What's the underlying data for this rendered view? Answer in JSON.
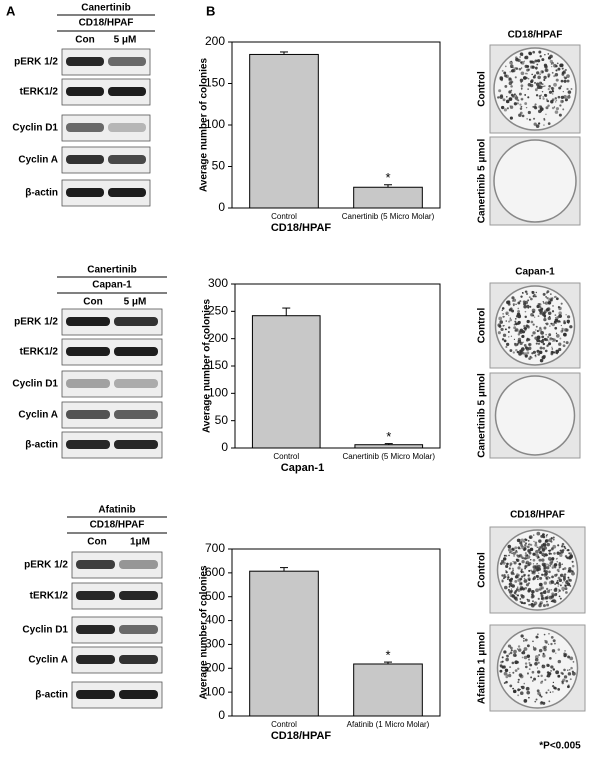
{
  "panel_labels": [
    "A",
    "B"
  ],
  "blots": [
    {
      "drug": "Canertinib",
      "cell_line": "CD18/HPAF",
      "lanes": [
        "Con",
        "5 μM"
      ],
      "rows": [
        "pERK 1/2",
        "tERK1/2",
        "Cyclin D1",
        "Cyclin A",
        "β-actin"
      ]
    },
    {
      "drug": "Canertinib",
      "cell_line": "Capan-1",
      "lanes": [
        "Con",
        "5 μM"
      ],
      "rows": [
        "pERK 1/2",
        "tERK1/2",
        "Cyclin D1",
        "Cyclin A",
        "β-actin"
      ]
    },
    {
      "drug": "Afatinib",
      "cell_line": "CD18/HPAF",
      "lanes": [
        "Con",
        "1μM"
      ],
      "rows": [
        "pERK 1/2",
        "tERK1/2",
        "Cyclin D1",
        "Cyclin A",
        "β-actin"
      ]
    }
  ],
  "colonies": [
    {
      "title": "CD18/HPAF",
      "labels": [
        "Control",
        "Canertinib 5 μmol"
      ]
    },
    {
      "title": "Capan-1",
      "labels": [
        "Control",
        "Canertinib 5 μmol"
      ]
    },
    {
      "title": "CD18/HPAF",
      "labels": [
        "Control",
        "Afatinib 1 μmol"
      ]
    }
  ],
  "chart_data": [
    {
      "type": "bar",
      "categories": [
        "Control",
        "Canertinib (5 Micro Molar)"
      ],
      "values": [
        185,
        25
      ],
      "errors": [
        3,
        3
      ],
      "annotation": "*",
      "x_label": "CD18/HPAF",
      "y_label": "Average number of colonies",
      "color": "#c8c8c8",
      "ylim": [
        0,
        200
      ],
      "yticks": [
        0,
        50,
        100,
        150,
        200
      ]
    },
    {
      "type": "bar",
      "categories": [
        "Control",
        "Canertinib (5 Micro Molar)"
      ],
      "values": [
        242,
        6
      ],
      "errors": [
        14,
        2
      ],
      "annotation": "*",
      "x_label": "Capan-1",
      "y_label": "Average number of colonies",
      "color": "#c8c8c8",
      "ylim": [
        0,
        300
      ],
      "yticks": [
        0,
        50,
        100,
        150,
        200,
        250,
        300
      ]
    },
    {
      "type": "bar",
      "categories": [
        "Control",
        "Afatinib (1 Micro Molar)"
      ],
      "values": [
        607,
        218
      ],
      "errors": [
        15,
        8
      ],
      "annotation": "*",
      "x_label": "CD18/HPAF",
      "y_label": "Average number of colonies",
      "color": "#c8c8c8",
      "ylim": [
        0,
        700
      ],
      "yticks": [
        0,
        100,
        200,
        300,
        400,
        500,
        600,
        700
      ]
    }
  ],
  "footnote": "*P<0.005"
}
